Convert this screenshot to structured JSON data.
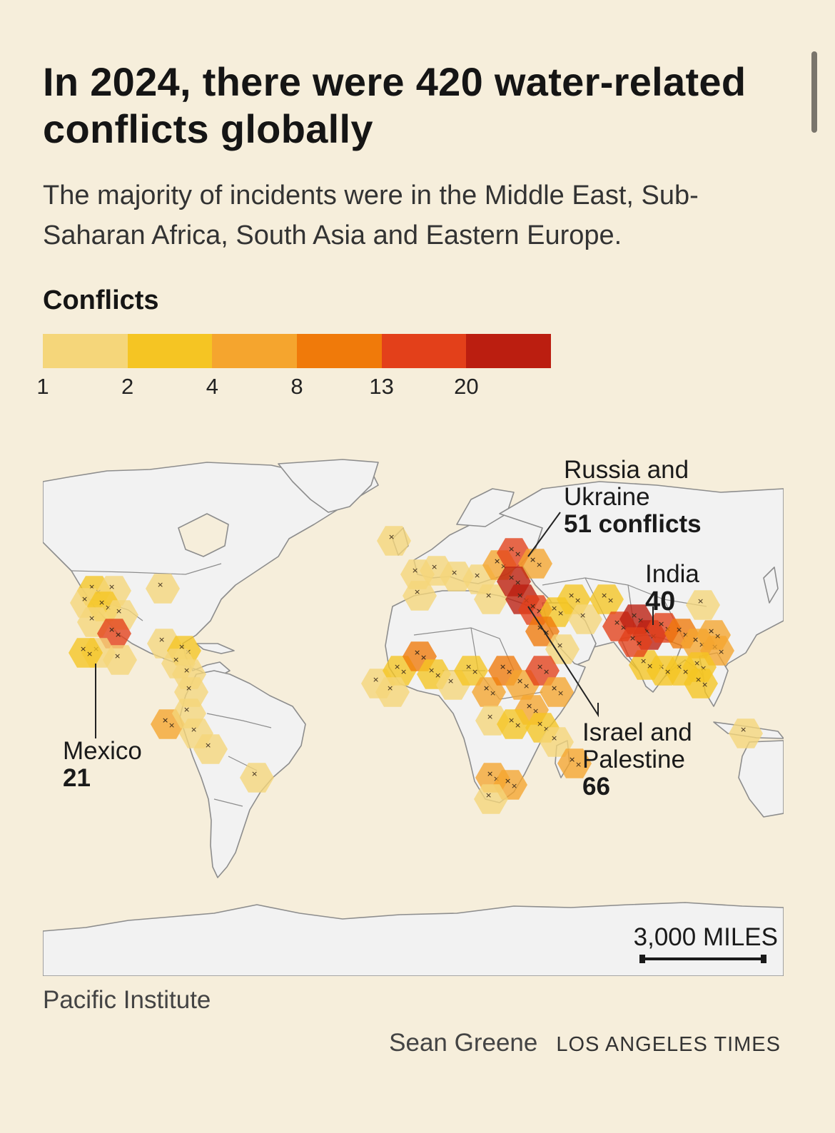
{
  "title": "In 2024, there were 420 water-related conflicts globally",
  "subtitle": "The majority of incidents were in the Middle East, Sub-Saharan Africa, South Asia and Eastern Europe.",
  "legend": {
    "title": "Conflicts",
    "colors": [
      "#f5d67a",
      "#f5c523",
      "#f5a52e",
      "#f07a0a",
      "#e3401a",
      "#bb1e10"
    ],
    "ticks": [
      "1",
      "2",
      "4",
      "8",
      "13",
      "20"
    ]
  },
  "annotations": {
    "russia": {
      "name_line1": "Russia and",
      "name_line2": "Ukraine",
      "value": "51 conflicts"
    },
    "india": {
      "name": "India",
      "value": "40"
    },
    "israel": {
      "name_line1": "Israel and",
      "name_line2": "Palestine",
      "value": "66"
    },
    "mexico": {
      "name": "Mexico",
      "value": "21"
    }
  },
  "scale": {
    "label": "3,000 MILES"
  },
  "source": "Pacific Institute",
  "credit": {
    "author": "Sean Greene",
    "organization": "LOS ANGELES TIMES"
  },
  "colors": {
    "background": "#f6eedb",
    "land": "#f2f2f2",
    "border": "#8d8d8d",
    "marker": "#3a2a1a"
  }
}
